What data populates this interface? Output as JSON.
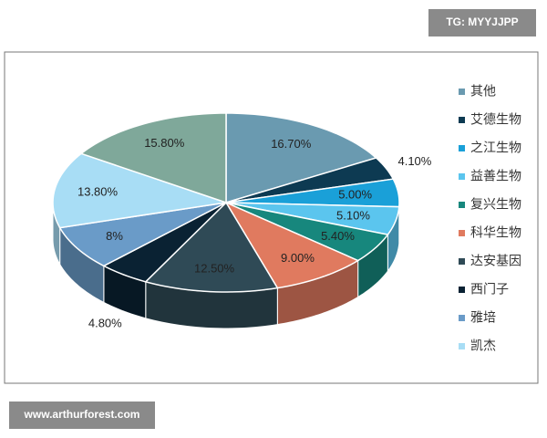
{
  "header": {
    "badge": "TG: MYYJJPP"
  },
  "footer": {
    "badge": "www.arthurforest.com"
  },
  "chart_data": {
    "type": "pie3d",
    "categories": [
      "其他",
      "艾德生物",
      "之江生物",
      "益善生物",
      "复兴生物",
      "科华生物",
      "达安基因",
      "西门子",
      "雅培",
      "凯杰",
      null
    ],
    "values": [
      16.7,
      4.1,
      5.0,
      5.1,
      5.4,
      9.0,
      12.5,
      4.8,
      8,
      13.8,
      15.8
    ],
    "value_labels": [
      "16.70%",
      "4.10%",
      "5.00%",
      "5.10%",
      "5.40%",
      "9.00%",
      "12.50%",
      "4.80%",
      "8%",
      "13.80%",
      "15.80%"
    ],
    "colors": [
      "#6a9ab0",
      "#0d3a52",
      "#1aa0d8",
      "#5bc5ee",
      "#17877d",
      "#e07a5f",
      "#2f4a56",
      "#0a2233",
      "#6a9bc8",
      "#a8ddf5",
      "#7fa89a"
    ],
    "legend": "right"
  }
}
